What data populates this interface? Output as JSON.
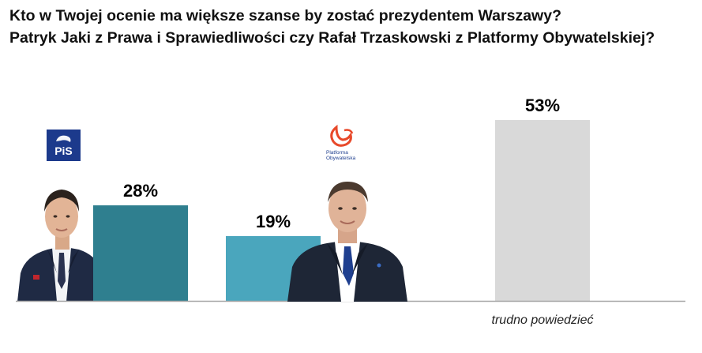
{
  "title": {
    "line1": "Kto w Twojej ocenie ma większe szanse by zostać prezydentem Warszawy?",
    "line2": "Patryk Jaki z Prawa i Sprawiedliwości czy Rafał Trzaskowski z Platformy Obywatelskiej?"
  },
  "logos": {
    "pis": "PiS",
    "po_line1": "Platforma",
    "po_line2": "Obywatelska"
  },
  "colors": {
    "bar1": "#2f7f8f",
    "bar2": "#4aa6bd",
    "bar3": "#d9d9d9",
    "baseline": "#a6a6a6",
    "pis_blue": "#1c3a8c",
    "po_orange": "#e8492a"
  },
  "chart_data": {
    "type": "bar",
    "categories": [
      "",
      "",
      "trudno powiedzieć"
    ],
    "values": [
      28,
      19,
      53
    ],
    "value_labels": [
      "28%",
      "19%",
      "53%"
    ],
    "ylim": [
      0,
      55
    ],
    "grid": false,
    "legend": "none"
  }
}
